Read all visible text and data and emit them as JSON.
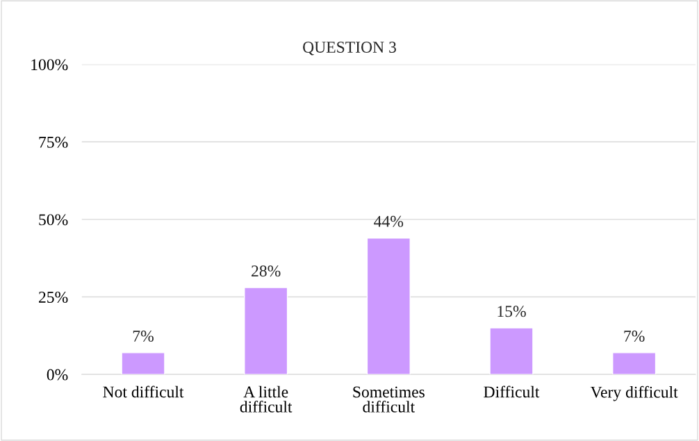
{
  "chart_data": {
    "type": "bar",
    "title": "QUESTION 3",
    "categories": [
      "Not difficult",
      "A little\ndifficult",
      "Sometimes\ndifficult",
      "Difficult",
      "Very difficult"
    ],
    "values": [
      7,
      28,
      44,
      15,
      7
    ],
    "value_labels": [
      "7%",
      "28%",
      "44%",
      "15%",
      "7%"
    ],
    "color": "#cc99ff",
    "ylim": [
      0,
      100
    ],
    "yticks": [
      {
        "value": 0,
        "label": "0%"
      },
      {
        "value": 25,
        "label": "25%"
      },
      {
        "value": 50,
        "label": "50%"
      },
      {
        "value": 75,
        "label": "75%"
      },
      {
        "value": 100,
        "label": "100%"
      }
    ],
    "grid": "y"
  }
}
